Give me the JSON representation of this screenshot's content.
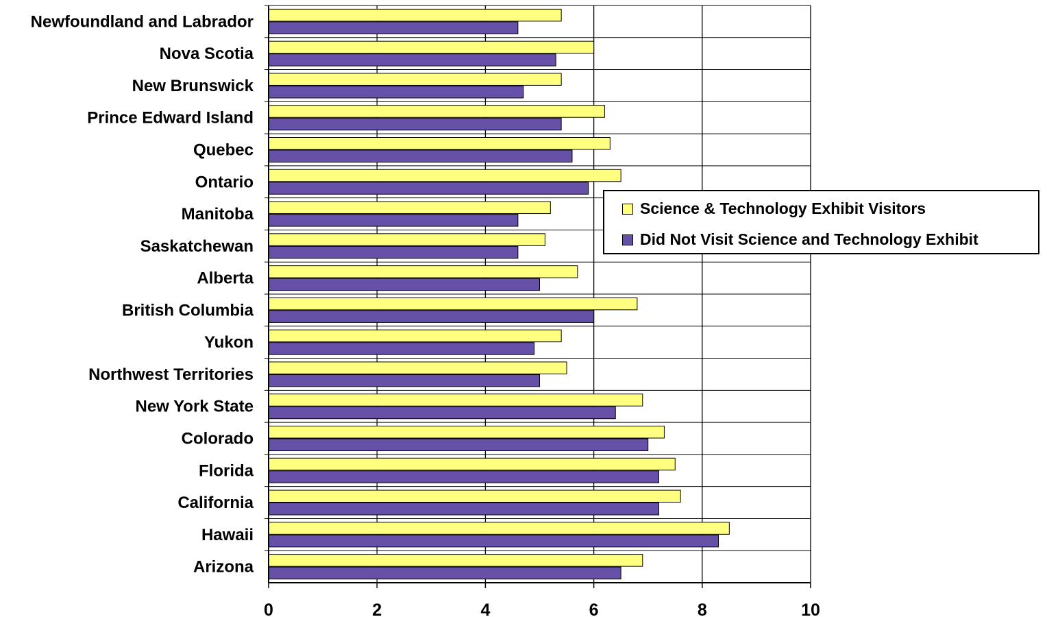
{
  "chart_data": {
    "type": "bar",
    "orientation": "horizontal",
    "title": "",
    "xlabel": "",
    "ylabel": "",
    "xlim": [
      0,
      10
    ],
    "xticks": [
      0,
      2,
      4,
      6,
      8,
      10
    ],
    "grid": "vertical gridlines at major ticks",
    "legend_position": "right",
    "categories": [
      "Newfoundland and Labrador",
      "Nova Scotia",
      "New Brunswick",
      "Prince Edward Island",
      "Quebec",
      "Ontario",
      "Manitoba",
      "Saskatchewan",
      "Alberta",
      "British Columbia",
      "Yukon",
      "Northwest Territories",
      "New York State",
      "Colorado",
      "Florida",
      "California",
      "Hawaii",
      "Arizona"
    ],
    "series": [
      {
        "name": "Science & Technology Exhibit Visitors",
        "color": "#FFFF80",
        "values": [
          5.4,
          6.0,
          5.4,
          6.2,
          6.3,
          6.5,
          5.2,
          5.1,
          5.7,
          6.8,
          5.4,
          5.5,
          6.9,
          7.3,
          7.5,
          7.6,
          8.5,
          6.9
        ]
      },
      {
        "name": "Did Not Visit Science and Technology Exhibit",
        "color": "#6650A8",
        "values": [
          4.6,
          5.3,
          4.7,
          5.4,
          5.6,
          5.9,
          4.6,
          4.6,
          5.0,
          6.0,
          4.9,
          5.0,
          6.4,
          7.0,
          7.2,
          7.2,
          8.3,
          6.5
        ]
      }
    ]
  }
}
